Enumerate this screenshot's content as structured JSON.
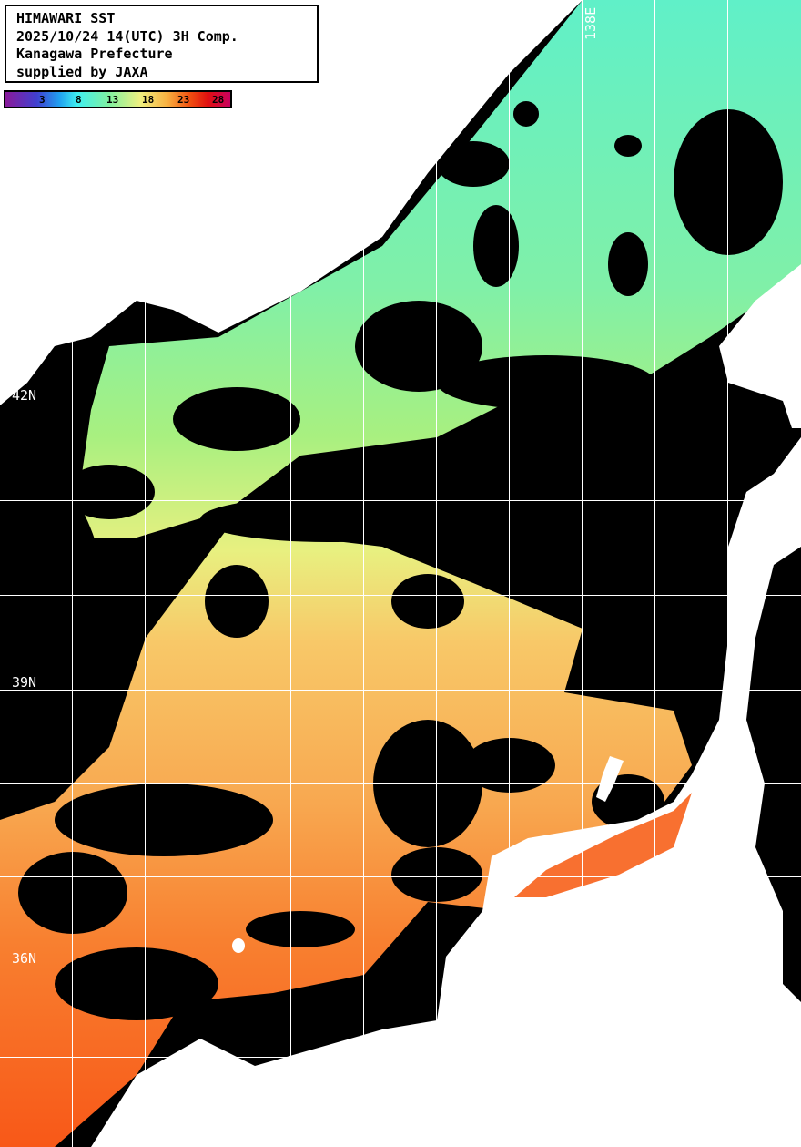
{
  "title": {
    "lines": [
      "HIMAWARI SST",
      "2025/10/24 14(UTC) 3H Comp.",
      "Kanagawa Prefecture",
      "supplied by JAXA"
    ]
  },
  "colorbar": {
    "unit_labels": [
      "3",
      "8",
      "13",
      "18",
      "23",
      "28"
    ],
    "colors": [
      "#8a1a9a",
      "#4040d0",
      "#40f0f0",
      "#80f0a0",
      "#f0f080",
      "#f8b040",
      "#f05010",
      "#c80060"
    ]
  },
  "grid": {
    "lat_labels": [
      "42N",
      "39N",
      "36N"
    ],
    "lon_labels": [
      "138E"
    ]
  },
  "map": {
    "land_color": "#ffffff",
    "cloud_color": "#000000",
    "grid_color": "#ffffff"
  }
}
